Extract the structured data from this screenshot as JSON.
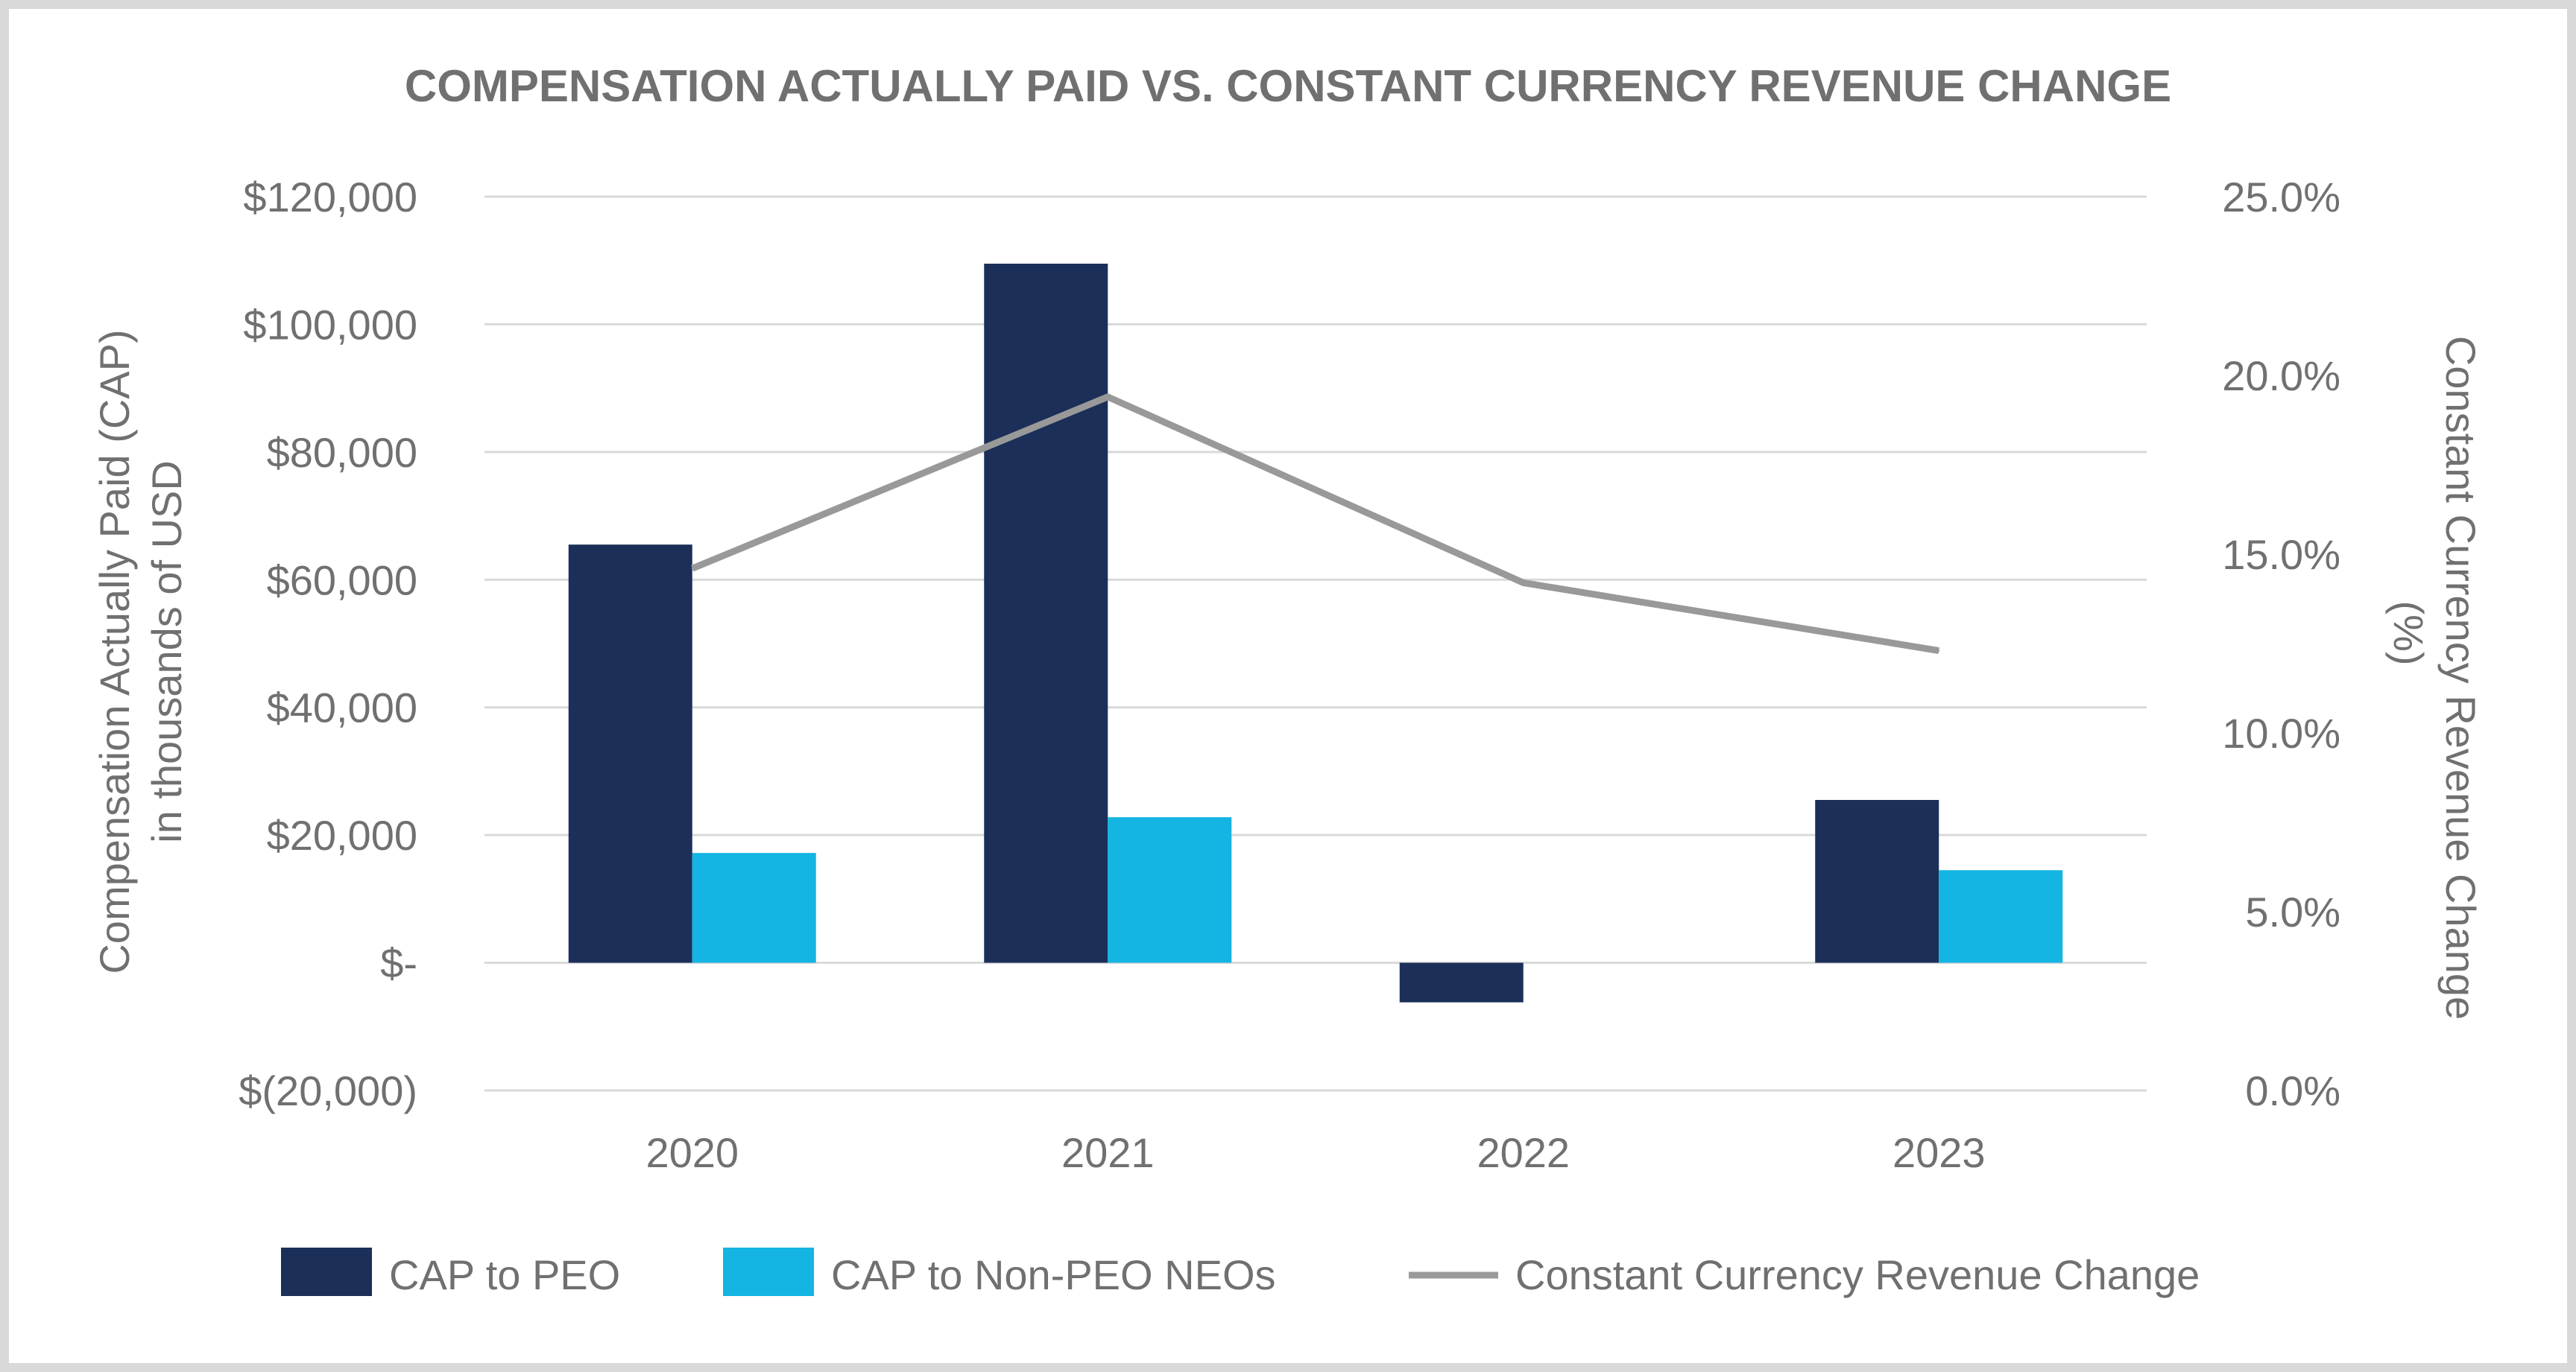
{
  "chart_data": {
    "type": "bar",
    "title": "COMPENSATION ACTUALLY PAID VS. CONSTANT CURRENCY REVENUE CHANGE",
    "categories": [
      "2020",
      "2021",
      "2022",
      "2023"
    ],
    "ylabel_line1": "Compensation Actually Paid (CAP)",
    "ylabel_line2": "in thousands of USD",
    "y2label_line1": "Constant Currency Revenue Change",
    "y2label_line2": "(%)",
    "ylim": [
      -20000,
      120000
    ],
    "y2lim": [
      0,
      25
    ],
    "y_ticks": [
      {
        "value": 120000,
        "label": "$120,000"
      },
      {
        "value": 100000,
        "label": "$100,000"
      },
      {
        "value": 80000,
        "label": "$80,000"
      },
      {
        "value": 60000,
        "label": "$60,000"
      },
      {
        "value": 40000,
        "label": "$40,000"
      },
      {
        "value": 20000,
        "label": "$20,000"
      },
      {
        "value": 0,
        "label": "$-"
      },
      {
        "value": -20000,
        "label": "$(20,000)"
      }
    ],
    "y2_ticks": [
      {
        "value": 25,
        "label": "25.0%"
      },
      {
        "value": 20,
        "label": "20.0%"
      },
      {
        "value": 15,
        "label": "15.0%"
      },
      {
        "value": 10,
        "label": "10.0%"
      },
      {
        "value": 5,
        "label": "5.0%"
      },
      {
        "value": 0,
        "label": "0.0%"
      }
    ],
    "series": [
      {
        "name": "CAP to PEO",
        "kind": "bar",
        "axis": "left",
        "color": "#1b2f58",
        "values": [
          65500,
          109500,
          -6200,
          25500
        ]
      },
      {
        "name": "CAP to Non-PEO NEOs",
        "kind": "bar",
        "axis": "left",
        "color": "#14b5e2",
        "values": [
          17200,
          22800,
          0,
          14500
        ]
      },
      {
        "name": "Constant Currency Revenue Change",
        "kind": "line",
        "axis": "right",
        "color": "#999999",
        "values": [
          14.6,
          19.4,
          14.2,
          12.3
        ]
      }
    ],
    "legend_position": "bottom",
    "grid": true,
    "frame_color": "#d9d9d9",
    "grid_color": "#d9d9d9",
    "text_color": "#707070"
  }
}
